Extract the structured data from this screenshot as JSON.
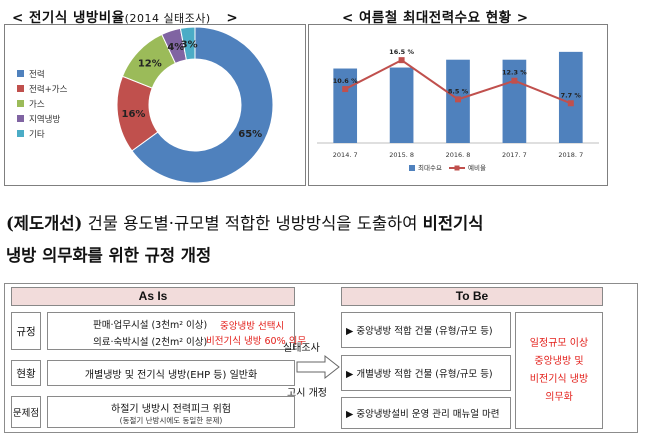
{
  "titles": {
    "left_main": "< 전기식 냉방비율",
    "left_sub": "(2014 실태조사)",
    "left_end": ">",
    "right": "< 여름철 최대전력수요 현황 >"
  },
  "chart_data": [
    {
      "type": "pie",
      "style": "donut",
      "title": "전기식 냉방비율(2014 실태조사)",
      "categories": [
        "전력",
        "전력+가스",
        "가스",
        "지역냉방",
        "기타"
      ],
      "values": [
        65,
        16,
        12,
        4,
        3
      ],
      "value_labels": [
        "65%",
        "16%",
        "12%",
        "4%",
        "3%"
      ],
      "colors": [
        "#4f81bd",
        "#c0504d",
        "#9bbb59",
        "#8064a2",
        "#4bacc6"
      ],
      "legend": "left"
    },
    {
      "type": "bar",
      "title": "여름철 최대전력수요 현황",
      "categories": [
        "2014. 7",
        "2015. 8",
        "2016. 8",
        "2017. 7",
        "2018. 7"
      ],
      "series": [
        {
          "name": "최대수요",
          "kind": "bar",
          "values": [
            7.6,
            7.7,
            8.5,
            8.5,
            9.3
          ],
          "color": "#4f81bd"
        },
        {
          "name": "예비율",
          "kind": "line",
          "values": [
            10.6,
            16.5,
            8.5,
            12.3,
            7.7
          ],
          "labels": [
            "10.6 %",
            "16.5 %",
            "8.5 %",
            "12.3 %",
            "7.7 %"
          ],
          "color": "#c0504d"
        }
      ],
      "legend": "bottom"
    }
  ],
  "headline": {
    "line1_prefix": "(제도개선)",
    "line1_text": " 건물 용도별·규모별 적합한 냉방방식을 도출하여 ",
    "line1_bold": "비전기식",
    "line2_bold": "냉방 의무화를 위한 규정 개정"
  },
  "diagram": {
    "as_is_header": "As Is",
    "to_be_header": "To Be",
    "rows": {
      "rule_label": "규정",
      "rule_line1": "판매·업무시설 (3천m² 이상)",
      "rule_line2": "의료·숙박시설 (2천m² 이상)",
      "rule_red1": "중앙냉방 선택시",
      "rule_red2": "비전기식 냉방 60% 의무",
      "status_label": "현황",
      "status_text": "개별냉방 및 전기식 냉방(EHP 등) 일반화",
      "problem_label": "문제점",
      "problem_text": "하절기 냉방시 전력피크 위험",
      "problem_sub": "(동절기 난방시에도 동일한 문제)"
    },
    "arrow_top": "실태조사",
    "arrow_bottom": "고시 개정",
    "to_be_items": [
      "▶ 중앙냉방 적합 건물 (유형/규모 등)",
      "▶ 개별냉방 적합 건물 (유형/규모 등)",
      "▶ 중앙냉방설비 운영 관리 매뉴얼 마련"
    ],
    "to_be_red": [
      "일정규모 이상",
      "중앙냉방 및",
      "비전기식 냉방",
      "의무화"
    ]
  }
}
